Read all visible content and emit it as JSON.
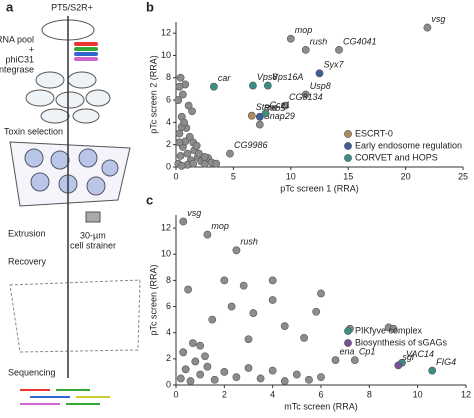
{
  "diagram": {
    "panel": "a",
    "steps": [
      "PT5/S2R+",
      "sgRNA pool",
      "+",
      "phiC31",
      "integrase",
      "Toxin selection",
      "Extrusion",
      "30-µm",
      "cell strainer",
      "Recovery",
      "Sequencing"
    ]
  },
  "chart_data": [
    {
      "type": "scatter",
      "panel": "b",
      "x_label": "pTc screen 1 (RRA)",
      "y_label": "pTc screen 2 (RRA)",
      "xlim": [
        0,
        25
      ],
      "ylim": [
        0,
        13
      ],
      "xticks": [
        0,
        5,
        10,
        15,
        20,
        25
      ],
      "yticks": [
        0,
        2,
        4,
        6,
        8,
        10,
        12
      ],
      "series": [
        {
          "color": "#8c8c8c",
          "x": [
            0.2,
            0.4,
            0.6,
            0.8,
            1.0,
            1.3,
            1.6,
            1.9,
            2.2,
            2.5,
            0.3,
            0.5,
            0.9,
            1.2,
            1.5,
            1.8,
            0.2,
            0.6,
            1.1,
            0.4,
            0.8,
            0.3,
            0.5,
            2.8,
            3.1,
            1.4,
            0.7,
            2.0,
            3.5,
            4.7,
            1,
            0.5,
            1.5,
            2.5,
            0.3,
            10,
            11.3,
            14.2,
            21.9,
            11.3,
            9.5,
            7.3
          ],
          "values": [
            0.3,
            1.0,
            1.8,
            2.3,
            1.2,
            0.6,
            1.5,
            0.9,
            0.5,
            0.3,
            3.0,
            4.5,
            3.5,
            2.7,
            2.2,
            1.9,
            6.0,
            6.5,
            5.5,
            8.0,
            7.4,
            7.2,
            3.6,
            0.8,
            0.4,
            5.0,
            4.0,
            1.2,
            0.3,
            1.2,
            0.2,
            0.1,
            0.3,
            0.9,
            2.2,
            11.5,
            10.5,
            10.5,
            12.5,
            6.5,
            5.5,
            3.8
          ],
          "point_labels": [
            null,
            null,
            null,
            null,
            null,
            null,
            null,
            null,
            null,
            null,
            null,
            null,
            null,
            null,
            null,
            null,
            null,
            null,
            null,
            null,
            null,
            null,
            null,
            null,
            null,
            null,
            null,
            null,
            null,
            "CG9986",
            null,
            null,
            null,
            null,
            null,
            "mop",
            "rush",
            "CG4041",
            "vsg",
            "Usp8",
            "CG8134",
            "Snap29"
          ]
        },
        {
          "name": "ESCRT-0",
          "color": "#b08a5a",
          "x": [
            6.6
          ],
          "values": [
            4.6
          ],
          "point_labels": [
            "Stam"
          ]
        },
        {
          "name": "Early endosome regulation",
          "color": "#3f5e99",
          "x": [
            12.5,
            7.3
          ],
          "values": [
            8.4,
            4.5
          ],
          "point_labels": [
            "Syx7",
            "Rab5"
          ]
        },
        {
          "name": "CORVET and HOPS",
          "color": "#3a8f84",
          "x": [
            3.3,
            6.7,
            8.0,
            7.8
          ],
          "values": [
            7.2,
            7.3,
            7.3,
            4.8
          ],
          "point_labels": [
            "car",
            "Vps8",
            "Vps16A",
            "Ccz1"
          ]
        }
      ]
    },
    {
      "type": "scatter",
      "panel": "c",
      "x_label": "mTc screen (RRA)",
      "y_label": "pTc screen (RRA)",
      "xlim": [
        0,
        12
      ],
      "ylim": [
        0,
        13
      ],
      "xticks": [
        0,
        2,
        4,
        6,
        8,
        10,
        12
      ],
      "yticks": [
        0,
        2,
        4,
        6,
        8,
        10,
        12
      ],
      "series": [
        {
          "color": "#8c8c8c",
          "x": [
            0.2,
            0.4,
            0.6,
            0.8,
            1.0,
            1.3,
            1.6,
            2.0,
            2.5,
            3.0,
            3.5,
            4.0,
            4.5,
            5.0,
            5.5,
            6.0,
            0.3,
            0.7,
            1.2,
            2.0,
            4.0,
            4.0,
            2.3,
            3.2,
            5.8,
            6.0,
            1.5,
            4.5,
            8.8,
            7.2,
            9.0,
            0.5,
            2.8,
            5.3,
            3.0,
            1.0,
            0.3,
            1.3,
            2.5,
            6.6,
            7.4
          ],
          "values": [
            0.5,
            1.2,
            0.3,
            1.8,
            0.8,
            1.4,
            0.4,
            1.0,
            0.6,
            1.3,
            0.5,
            1.1,
            0.3,
            0.8,
            0.4,
            0.6,
            2.5,
            3.2,
            2.2,
            8.0,
            8.0,
            6.5,
            6.0,
            5.5,
            5.6,
            7.0,
            5.0,
            4.5,
            4.4,
            4.3,
            4.3,
            7.3,
            7.6,
            3.6,
            3.5,
            3.0,
            12.5,
            11.5,
            10.3,
            1.9,
            1.9
          ],
          "point_labels": [
            null,
            null,
            null,
            null,
            null,
            null,
            null,
            null,
            null,
            null,
            null,
            null,
            null,
            null,
            null,
            null,
            null,
            null,
            null,
            null,
            null,
            null,
            null,
            null,
            null,
            null,
            null,
            null,
            null,
            null,
            null,
            null,
            null,
            null,
            null,
            null,
            "vsg",
            "mop",
            "rush",
            "ena",
            "Cp1"
          ]
        },
        {
          "name": "PIKfyve complex",
          "color": "#3a8f84",
          "x": [
            9.35,
            10.6
          ],
          "values": [
            1.7,
            1.1
          ],
          "point_labels": [
            "VAC14",
            "FIG4"
          ]
        },
        {
          "name": "Biosynthesis of sGAGs",
          "color": "#7a4f9a",
          "x": [
            9.2
          ],
          "values": [
            1.5
          ],
          "point_labels": [
            "sgl"
          ]
        }
      ]
    }
  ]
}
